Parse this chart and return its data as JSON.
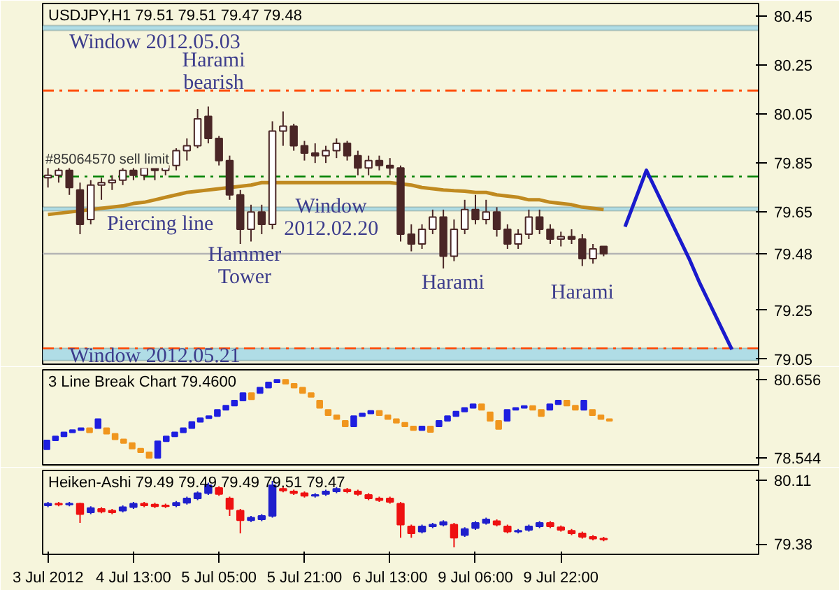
{
  "chart_data": [
    {
      "type": "candlestick",
      "title": "USDJPY,H1  79.51 79.51 79.47 79.48",
      "ylim": [
        79.03,
        80.5
      ],
      "yticks": [
        80.45,
        80.25,
        80.05,
        79.85,
        79.65,
        79.48,
        79.25,
        79.05
      ],
      "tick_labels": "y",
      "categories": [
        "3 Jul 2012",
        null,
        null,
        null,
        null,
        null,
        null,
        null,
        "4 Jul 13:00",
        null,
        null,
        null,
        null,
        null,
        null,
        null,
        "5 Jul 05:00",
        null,
        null,
        null,
        null,
        null,
        null,
        null,
        "5 Jul 21:00",
        null,
        null,
        null,
        null,
        null,
        null,
        null,
        "6 Jul 13:00",
        null,
        null,
        null,
        null,
        null,
        null,
        null,
        "9 Jul 06:00",
        null,
        null,
        null,
        null,
        null,
        null,
        null,
        "9 Jul 22:00",
        null,
        null,
        null,
        null,
        null,
        null,
        null,
        null,
        null,
        null,
        null,
        null,
        null,
        null,
        null,
        null,
        null,
        null
      ],
      "series": [
        {
          "color": "#4a2626",
          "ohlc": [
            [
              79.79,
              79.84,
              79.75,
              79.8
            ],
            [
              79.8,
              79.84,
              79.77,
              79.82
            ],
            [
              79.82,
              79.83,
              79.72,
              79.75
            ],
            [
              79.74,
              79.77,
              79.56,
              79.6
            ],
            [
              79.62,
              79.78,
              79.6,
              79.76
            ],
            [
              79.76,
              79.79,
              79.7,
              79.77
            ],
            [
              79.77,
              79.8,
              79.74,
              79.78
            ],
            [
              79.78,
              79.83,
              79.76,
              79.82
            ],
            [
              79.82,
              79.84,
              79.78,
              79.8
            ],
            [
              79.8,
              79.84,
              79.78,
              79.83
            ],
            [
              79.83,
              79.85,
              79.78,
              79.82
            ],
            [
              79.82,
              79.86,
              79.8,
              79.84
            ],
            [
              79.84,
              79.91,
              79.82,
              79.9
            ],
            [
              79.9,
              79.95,
              79.86,
              79.92
            ],
            [
              79.92,
              80.07,
              79.91,
              80.03
            ],
            [
              80.04,
              80.08,
              79.93,
              79.95
            ],
            [
              79.95,
              79.96,
              79.84,
              79.86
            ],
            [
              79.86,
              79.88,
              79.7,
              79.72
            ],
            [
              79.72,
              79.74,
              79.52,
              79.58
            ],
            [
              79.58,
              79.68,
              79.53,
              79.65
            ],
            [
              79.65,
              79.68,
              79.56,
              79.6
            ],
            [
              79.6,
              80.02,
              79.58,
              79.98
            ],
            [
              79.98,
              80.06,
              79.92,
              80.0
            ],
            [
              80.0,
              80.01,
              79.9,
              79.92
            ],
            [
              79.92,
              79.94,
              79.86,
              79.89
            ],
            [
              79.89,
              79.93,
              79.85,
              79.88
            ],
            [
              79.88,
              79.92,
              79.85,
              79.9
            ],
            [
              79.9,
              79.95,
              79.87,
              79.93
            ],
            [
              79.93,
              79.94,
              79.86,
              79.88
            ],
            [
              79.88,
              79.9,
              79.8,
              79.83
            ],
            [
              79.83,
              79.88,
              79.8,
              79.86
            ],
            [
              79.86,
              79.88,
              79.82,
              79.84
            ],
            [
              79.84,
              79.87,
              79.8,
              79.83
            ],
            [
              79.83,
              79.84,
              79.53,
              79.56
            ],
            [
              79.56,
              79.6,
              79.49,
              79.52
            ],
            [
              79.52,
              79.6,
              79.5,
              79.58
            ],
            [
              79.58,
              79.66,
              79.56,
              79.63
            ],
            [
              79.63,
              79.66,
              79.42,
              79.47
            ],
            [
              79.47,
              79.62,
              79.45,
              79.58
            ],
            [
              79.58,
              79.7,
              79.56,
              79.66
            ],
            [
              79.66,
              79.72,
              79.6,
              79.62
            ],
            [
              79.62,
              79.7,
              79.6,
              79.65
            ],
            [
              79.65,
              79.67,
              79.55,
              79.58
            ],
            [
              79.58,
              79.6,
              79.5,
              79.52
            ],
            [
              79.52,
              79.58,
              79.5,
              79.56
            ],
            [
              79.56,
              79.66,
              79.54,
              79.63
            ],
            [
              79.63,
              79.66,
              79.56,
              79.58
            ],
            [
              79.58,
              79.6,
              79.52,
              79.54
            ],
            [
              79.54,
              79.57,
              79.51,
              79.55
            ],
            [
              79.55,
              79.58,
              79.52,
              79.54
            ],
            [
              79.54,
              79.56,
              79.43,
              79.46
            ],
            [
              79.46,
              79.52,
              79.44,
              79.5
            ],
            [
              79.51,
              79.51,
              79.47,
              79.48
            ],
            null,
            null,
            null,
            null,
            null,
            null,
            null,
            null,
            null,
            null,
            null,
            null,
            null,
            null
          ]
        },
        {
          "type": "line",
          "color": "#c08a20",
          "values": [
            79.64,
            79.645,
            79.65,
            79.655,
            79.66,
            79.665,
            79.67,
            79.675,
            79.685,
            79.69,
            79.7,
            79.71,
            79.72,
            79.73,
            79.735,
            79.74,
            79.745,
            79.75,
            79.755,
            79.76,
            79.77,
            79.77,
            79.77,
            79.77,
            79.77,
            79.77,
            79.77,
            79.77,
            79.77,
            79.77,
            79.77,
            79.77,
            79.77,
            79.765,
            79.76,
            79.75,
            79.745,
            79.74,
            79.737,
            79.735,
            79.73,
            79.73,
            79.72,
            79.715,
            79.71,
            79.7,
            79.7,
            79.69,
            79.685,
            79.68,
            79.67,
            79.665,
            79.66,
            null,
            null,
            null,
            null,
            null,
            null,
            null,
            null,
            null,
            null,
            null,
            null,
            null,
            null
          ]
        },
        {
          "type": "line",
          "color": "#1a1acc",
          "values": [
            null,
            null,
            null,
            null,
            null,
            null,
            null,
            null,
            null,
            null,
            null,
            null,
            null,
            null,
            null,
            null,
            null,
            null,
            null,
            null,
            null,
            null,
            null,
            null,
            null,
            null,
            null,
            null,
            null,
            null,
            null,
            null,
            null,
            null,
            null,
            null,
            null,
            null,
            null,
            null,
            null,
            null,
            null,
            null,
            null,
            null,
            null,
            null,
            null,
            null,
            null,
            null,
            null,
            null,
            79.59,
            79.705,
            79.82,
            79.73,
            79.64,
            79.55,
            79.46,
            79.36,
            79.27,
            79.18,
            79.09,
            null,
            null
          ]
        }
      ],
      "bands": [
        {
          "axis": "y",
          "from": 80.39,
          "to": 80.41,
          "color": "#b0dde6"
        },
        {
          "axis": "y",
          "from": 79.655,
          "to": 79.67,
          "color": "#b0dde6"
        },
        {
          "axis": "y",
          "from": 79.045,
          "to": 79.095,
          "color": "#b0dde6"
        }
      ],
      "ref_lines": [
        {
          "axis": "y",
          "value": 80.145,
          "color": "#ff4500",
          "line_style": "dashed"
        },
        {
          "axis": "y",
          "value": 79.795,
          "color": "#008000",
          "line_style": "dashed",
          "label": "#85064570 sell limit"
        },
        {
          "axis": "y",
          "value": 79.095,
          "color": "#ff4500",
          "line_style": "dashed"
        },
        {
          "axis": "y",
          "value": 79.48,
          "color": "#b4b4b4",
          "line_style": "solid"
        }
      ],
      "annotations": [
        "Window 2012.05.03",
        "Harami\nbearish",
        "Piercing line",
        "Hammer\nTower",
        "Window\n2012.02.20",
        "Harami",
        "Harami",
        "Window 2012.05.21"
      ]
    },
    {
      "type": "candlestick",
      "title": "3 Line Break Chart 79.4600",
      "ylim": [
        78.36,
        80.93
      ],
      "yticks": [
        80.656,
        78.544
      ],
      "tick_labels": "y",
      "categories": [
        null,
        null,
        null,
        null,
        null,
        null,
        null,
        null,
        null,
        null,
        null,
        null,
        null,
        null,
        null,
        null,
        null,
        null,
        null,
        null,
        null,
        null,
        null,
        null,
        null,
        null,
        null,
        null,
        null,
        null,
        null,
        null,
        null,
        null,
        null,
        null,
        null,
        null,
        null,
        null,
        null,
        null,
        null,
        null,
        null,
        null,
        null,
        null,
        null,
        null,
        null,
        null,
        null,
        null,
        null,
        null,
        null,
        null,
        null,
        null,
        null,
        null,
        null,
        null,
        null,
        null,
        null,
        null,
        null,
        null,
        null,
        null,
        null,
        null,
        null,
        null,
        null,
        null,
        null,
        null,
        null,
        null,
        null,
        null
      ],
      "series": [
        {
          "color": "#1f1fe0",
          "colors": [
            "#1f1fe0",
            "#1f1fe0",
            "#1f1fe0",
            "#1f1fe0",
            "#1f1fe0",
            "#f0961e",
            "#1f1fe0",
            "#f0961e",
            "#f0961e",
            "#f0961e",
            "#f0961e",
            "#f0961e",
            "#f0961e",
            "#1f1fe0",
            "#1f1fe0",
            "#1f1fe0",
            "#1f1fe0",
            "#1f1fe0",
            "#1f1fe0",
            "#1f1fe0",
            "#1f1fe0",
            "#1f1fe0",
            "#1f1fe0",
            "#1f1fe0",
            "#f0961e",
            "#1f1fe0",
            "#1f1fe0",
            "#1f1fe0",
            "#f0961e",
            "#f0961e",
            "#f0961e",
            "#f0961e",
            "#f0961e",
            "#f0961e",
            "#f0961e",
            "#f0961e",
            "#1f1fe0",
            "#1f1fe0",
            "#1f1fe0",
            "#f0961e",
            "#f0961e",
            "#f0961e",
            "#f0961e",
            "#f0961e",
            "#1f1fe0",
            "#f0961e",
            "#1f1fe0",
            "#1f1fe0",
            "#1f1fe0",
            "#1f1fe0",
            "#1f1fe0",
            "#f0961e",
            "#f0961e",
            "#f0961e",
            "#1f1fe0",
            "#1f1fe0",
            "#1f1fe0",
            "#f0961e",
            "#f0961e",
            "#1f1fe0",
            "#1f1fe0",
            "#f0961e",
            "#f0961e",
            "#1f1fe0",
            "#f0961e",
            "#f0961e",
            "#f0961e",
            null,
            null,
            null,
            null,
            null,
            null,
            null,
            null,
            null,
            null,
            null,
            null,
            null,
            null,
            null,
            null,
            null
          ],
          "ohlc": [
            [
              78.78,
              79.02,
              78.78,
              79.02
            ],
            [
              79.02,
              79.13,
              79.02,
              79.13
            ],
            [
              79.13,
              79.24,
              79.13,
              79.24
            ],
            [
              79.24,
              79.3,
              79.24,
              79.3
            ],
            [
              79.3,
              79.35,
              79.3,
              79.35
            ],
            [
              79.35,
              79.35,
              79.24,
              79.24
            ],
            [
              79.35,
              79.6,
              79.35,
              79.6
            ],
            [
              79.35,
              79.35,
              79.2,
              79.2
            ],
            [
              79.2,
              79.2,
              79.05,
              79.05
            ],
            [
              79.05,
              79.05,
              78.95,
              78.95
            ],
            [
              78.95,
              78.95,
              78.8,
              78.8
            ],
            [
              78.8,
              78.8,
              78.7,
              78.7
            ],
            [
              78.7,
              78.7,
              78.55,
              78.55
            ],
            [
              78.55,
              79.0,
              78.55,
              79.0
            ],
            [
              79.0,
              79.13,
              79.0,
              79.13
            ],
            [
              79.13,
              79.24,
              79.13,
              79.24
            ],
            [
              79.24,
              79.35,
              79.24,
              79.35
            ],
            [
              79.35,
              79.52,
              79.35,
              79.52
            ],
            [
              79.52,
              79.62,
              79.52,
              79.62
            ],
            [
              79.62,
              79.68,
              79.62,
              79.68
            ],
            [
              79.68,
              79.85,
              79.68,
              79.85
            ],
            [
              79.85,
              79.96,
              79.85,
              79.96
            ],
            [
              79.96,
              80.1,
              79.96,
              80.1
            ],
            [
              80.1,
              80.3,
              80.1,
              80.3
            ],
            [
              80.3,
              80.3,
              80.13,
              80.13
            ],
            [
              80.3,
              80.45,
              80.3,
              80.45
            ],
            [
              80.45,
              80.59,
              80.45,
              80.59
            ],
            [
              80.59,
              80.66,
              80.59,
              80.66
            ],
            [
              80.66,
              80.66,
              80.55,
              80.55
            ],
            [
              80.55,
              80.55,
              80.45,
              80.45
            ],
            [
              80.45,
              80.45,
              80.3,
              80.3
            ],
            [
              80.3,
              80.3,
              80.2,
              80.2
            ],
            [
              80.1,
              80.1,
              79.9,
              79.9
            ],
            [
              79.85,
              79.85,
              79.7,
              79.7
            ],
            [
              79.7,
              79.7,
              79.6,
              79.6
            ],
            [
              79.55,
              79.55,
              79.4,
              79.4
            ],
            [
              79.4,
              79.68,
              79.4,
              79.68
            ],
            [
              79.68,
              79.75,
              79.68,
              79.75
            ],
            [
              79.75,
              79.82,
              79.75,
              79.82
            ],
            [
              79.82,
              79.82,
              79.7,
              79.7
            ],
            [
              79.7,
              79.7,
              79.6,
              79.6
            ],
            [
              79.6,
              79.6,
              79.5,
              79.5
            ],
            [
              79.5,
              79.5,
              79.4,
              79.4
            ],
            [
              79.4,
              79.4,
              79.3,
              79.3
            ],
            [
              79.3,
              79.4,
              79.3,
              79.4
            ],
            [
              79.4,
              79.4,
              79.25,
              79.25
            ],
            [
              79.4,
              79.55,
              79.4,
              79.55
            ],
            [
              79.55,
              79.68,
              79.55,
              79.68
            ],
            [
              79.68,
              79.8,
              79.68,
              79.8
            ],
            [
              79.8,
              79.9,
              79.8,
              79.9
            ],
            [
              79.9,
              80.0,
              79.9,
              80.0
            ],
            [
              80.0,
              80.0,
              79.85,
              79.85
            ],
            [
              79.78,
              79.78,
              79.55,
              79.55
            ],
            [
              79.55,
              79.55,
              79.33,
              79.33
            ],
            [
              79.55,
              79.85,
              79.55,
              79.85
            ],
            [
              79.85,
              79.9,
              79.85,
              79.9
            ],
            [
              79.9,
              79.95,
              79.9,
              79.95
            ],
            [
              79.95,
              79.95,
              79.85,
              79.85
            ],
            [
              79.85,
              79.85,
              79.68,
              79.68
            ],
            [
              79.85,
              80.0,
              79.85,
              80.0
            ],
            [
              80.0,
              80.1,
              80.0,
              80.1
            ],
            [
              80.1,
              80.1,
              79.96,
              79.96
            ],
            [
              79.96,
              79.96,
              79.85,
              79.85
            ],
            [
              79.85,
              80.1,
              79.85,
              80.1
            ],
            [
              79.85,
              79.85,
              79.7,
              79.7
            ],
            [
              79.7,
              79.7,
              79.6,
              79.6
            ],
            [
              79.6,
              79.6,
              79.55,
              79.55
            ],
            null,
            null,
            null,
            null,
            null,
            null,
            null,
            null,
            null,
            null,
            null,
            null,
            null,
            null,
            null,
            null,
            null
          ]
        }
      ]
    },
    {
      "type": "candlestick",
      "title": "Heiken-Ashi 79.49 79.49 79.49 79.51 79.47",
      "ylim": [
        79.26,
        80.22
      ],
      "yticks": [
        80.11,
        79.38
      ],
      "categories": [
        "3 Jul 2012",
        null,
        null,
        null,
        null,
        null,
        null,
        null,
        "4 Jul 13:00",
        null,
        null,
        null,
        null,
        null,
        null,
        null,
        "5 Jul 05:00",
        null,
        null,
        null,
        null,
        null,
        null,
        null,
        "5 Jul 21:00",
        null,
        null,
        null,
        null,
        null,
        null,
        null,
        "6 Jul 13:00",
        null,
        null,
        null,
        null,
        null,
        null,
        null,
        "9 Jul 06:00",
        null,
        null,
        null,
        null,
        null,
        null,
        null,
        "9 Jul 22:00",
        null,
        null,
        null,
        null,
        null,
        null,
        null,
        null,
        null,
        null,
        null,
        null,
        null,
        null,
        null,
        null,
        null,
        null
      ],
      "series": [
        {
          "color": "#1f1fcc",
          "colors": [
            "#1f1fcc",
            "#ee1111",
            "#1f1fcc",
            "#ee1111",
            "#1f1fcc",
            "#ee1111",
            "#ee1111",
            "#1f1fcc",
            "#1f1fcc",
            "#ee1111",
            "#ee1111",
            "#ee1111",
            "#1f1fcc",
            "#1f1fcc",
            "#1f1fcc",
            "#1f1fcc",
            "#ee1111",
            "#ee1111",
            "#ee1111",
            "#1f1fcc",
            "#1f1fcc",
            "#1f1fcc",
            "#ee1111",
            "#ee1111",
            "#ee1111",
            "#1f1fcc",
            "#1f1fcc",
            "#1f1fcc",
            "#ee1111",
            "#ee1111",
            "#ee1111",
            "#ee1111",
            "#ee1111",
            "#ee1111",
            "#ee1111",
            "#1f1fcc",
            "#1f1fcc",
            "#1f1fcc",
            "#ee1111",
            "#1f1fcc",
            "#1f1fcc",
            "#1f1fcc",
            "#ee1111",
            "#ee1111",
            "#1f1fcc",
            "#1f1fcc",
            "#1f1fcc",
            "#ee1111",
            "#ee1111",
            "#ee1111",
            "#ee1111",
            "#ee1111",
            "#ee1111",
            null,
            null,
            null,
            null,
            null,
            null,
            null,
            null,
            null,
            null,
            null,
            null,
            null,
            null
          ],
          "ohlc": [
            [
              79.82,
              79.86,
              79.8,
              79.84
            ],
            [
              79.84,
              79.86,
              79.81,
              79.83
            ],
            [
              79.83,
              79.86,
              79.81,
              79.84
            ],
            [
              79.84,
              79.85,
              79.62,
              79.72
            ],
            [
              79.74,
              79.81,
              79.72,
              79.79
            ],
            [
              79.78,
              79.8,
              79.73,
              79.75
            ],
            [
              79.76,
              79.78,
              79.72,
              79.74
            ],
            [
              79.76,
              79.82,
              79.74,
              79.8
            ],
            [
              79.8,
              79.86,
              79.78,
              79.84
            ],
            [
              79.84,
              79.86,
              79.8,
              79.82
            ],
            [
              79.83,
              79.85,
              79.79,
              79.81
            ],
            [
              79.82,
              79.84,
              79.79,
              79.81
            ],
            [
              79.82,
              79.87,
              79.8,
              79.85
            ],
            [
              79.85,
              79.92,
              79.83,
              79.9
            ],
            [
              79.9,
              79.98,
              79.88,
              79.96
            ],
            [
              79.96,
              80.08,
              79.94,
              80.05
            ],
            [
              80.02,
              80.04,
              79.93,
              79.95
            ],
            [
              79.9,
              79.92,
              79.7,
              79.78
            ],
            [
              79.76,
              79.78,
              79.5,
              79.65
            ],
            [
              79.65,
              79.7,
              79.63,
              79.68
            ],
            [
              79.66,
              79.72,
              79.64,
              79.7
            ],
            [
              79.7,
              80.1,
              79.68,
              80.05
            ],
            [
              80.01,
              80.03,
              79.97,
              79.99
            ],
            [
              79.98,
              80.0,
              79.94,
              79.96
            ],
            [
              79.96,
              79.98,
              79.91,
              79.93
            ],
            [
              79.93,
              79.96,
              79.91,
              79.94
            ],
            [
              79.95,
              80.0,
              79.93,
              79.98
            ],
            [
              79.98,
              80.03,
              79.96,
              80.01
            ],
            [
              80.0,
              80.02,
              79.96,
              79.98
            ],
            [
              79.98,
              80.0,
              79.93,
              79.95
            ],
            [
              79.94,
              79.96,
              79.88,
              79.9
            ],
            [
              79.9,
              79.92,
              79.86,
              79.88
            ],
            [
              79.9,
              79.92,
              79.84,
              79.86
            ],
            [
              79.84,
              79.86,
              79.45,
              79.6
            ],
            [
              79.58,
              79.6,
              79.45,
              79.5
            ],
            [
              79.52,
              79.6,
              79.5,
              79.58
            ],
            [
              79.58,
              79.62,
              79.56,
              79.6
            ],
            [
              79.6,
              79.65,
              79.58,
              79.63
            ],
            [
              79.6,
              79.62,
              79.34,
              79.45
            ],
            [
              79.48,
              79.57,
              79.46,
              79.55
            ],
            [
              79.56,
              79.64,
              79.54,
              79.62
            ],
            [
              79.62,
              79.68,
              79.6,
              79.66
            ],
            [
              79.64,
              79.66,
              79.58,
              79.6
            ],
            [
              79.58,
              79.6,
              79.5,
              79.52
            ],
            [
              79.52,
              79.55,
              79.5,
              79.53
            ],
            [
              79.54,
              79.6,
              79.52,
              79.58
            ],
            [
              79.58,
              79.64,
              79.56,
              79.62
            ],
            [
              79.62,
              79.64,
              79.56,
              79.58
            ],
            [
              79.57,
              79.59,
              79.52,
              79.54
            ],
            [
              79.53,
              79.55,
              79.48,
              79.5
            ],
            [
              79.5,
              79.52,
              79.44,
              79.46
            ],
            [
              79.46,
              79.48,
              79.42,
              79.44
            ],
            [
              79.44,
              79.46,
              79.41,
              79.43
            ],
            null,
            null,
            null,
            null,
            null,
            null,
            null,
            null,
            null,
            null,
            null,
            null,
            null,
            null
          ]
        }
      ]
    }
  ]
}
